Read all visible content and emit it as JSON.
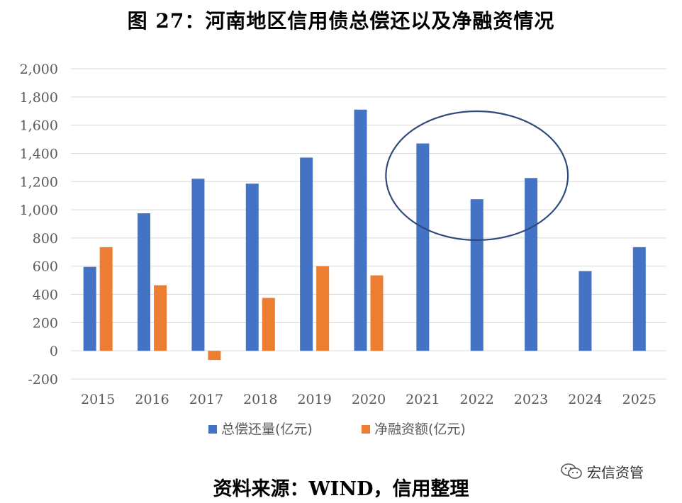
{
  "title": "图 27：河南地区信用债总偿还以及净融资情况",
  "source_note": "资料来源：WIND，信用整理",
  "watermark": {
    "text": "宏信资管",
    "icon": "wechat-icon"
  },
  "chart_data": {
    "type": "bar",
    "categories": [
      "2015",
      "2016",
      "2017",
      "2018",
      "2019",
      "2020",
      "2021",
      "2022",
      "2023",
      "2024",
      "2025"
    ],
    "series": [
      {
        "name": "总偿还量(亿元)",
        "color": "#4472C4",
        "values": [
          595,
          975,
          1220,
          1185,
          1370,
          1710,
          1470,
          1075,
          1225,
          565,
          735
        ]
      },
      {
        "name": "净融资额(亿元)",
        "color": "#ED7D31",
        "values": [
          735,
          465,
          -65,
          375,
          600,
          535,
          null,
          null,
          null,
          null,
          null
        ]
      }
    ],
    "ylim": [
      -200,
      2000
    ],
    "yticks": [
      -200,
      0,
      200,
      400,
      600,
      800,
      1000,
      1200,
      1400,
      1600,
      1800,
      2000
    ],
    "ytick_labels": [
      "-200",
      "0",
      "200",
      "400",
      "600",
      "800",
      "1,000",
      "1,200",
      "1,400",
      "1,600",
      "1,800",
      "2,000"
    ],
    "grid": true,
    "legend": "bottom",
    "annotation": {
      "type": "ellipse",
      "color": "#2E4A7D",
      "around_categories": [
        "2021",
        "2022",
        "2023"
      ]
    }
  }
}
